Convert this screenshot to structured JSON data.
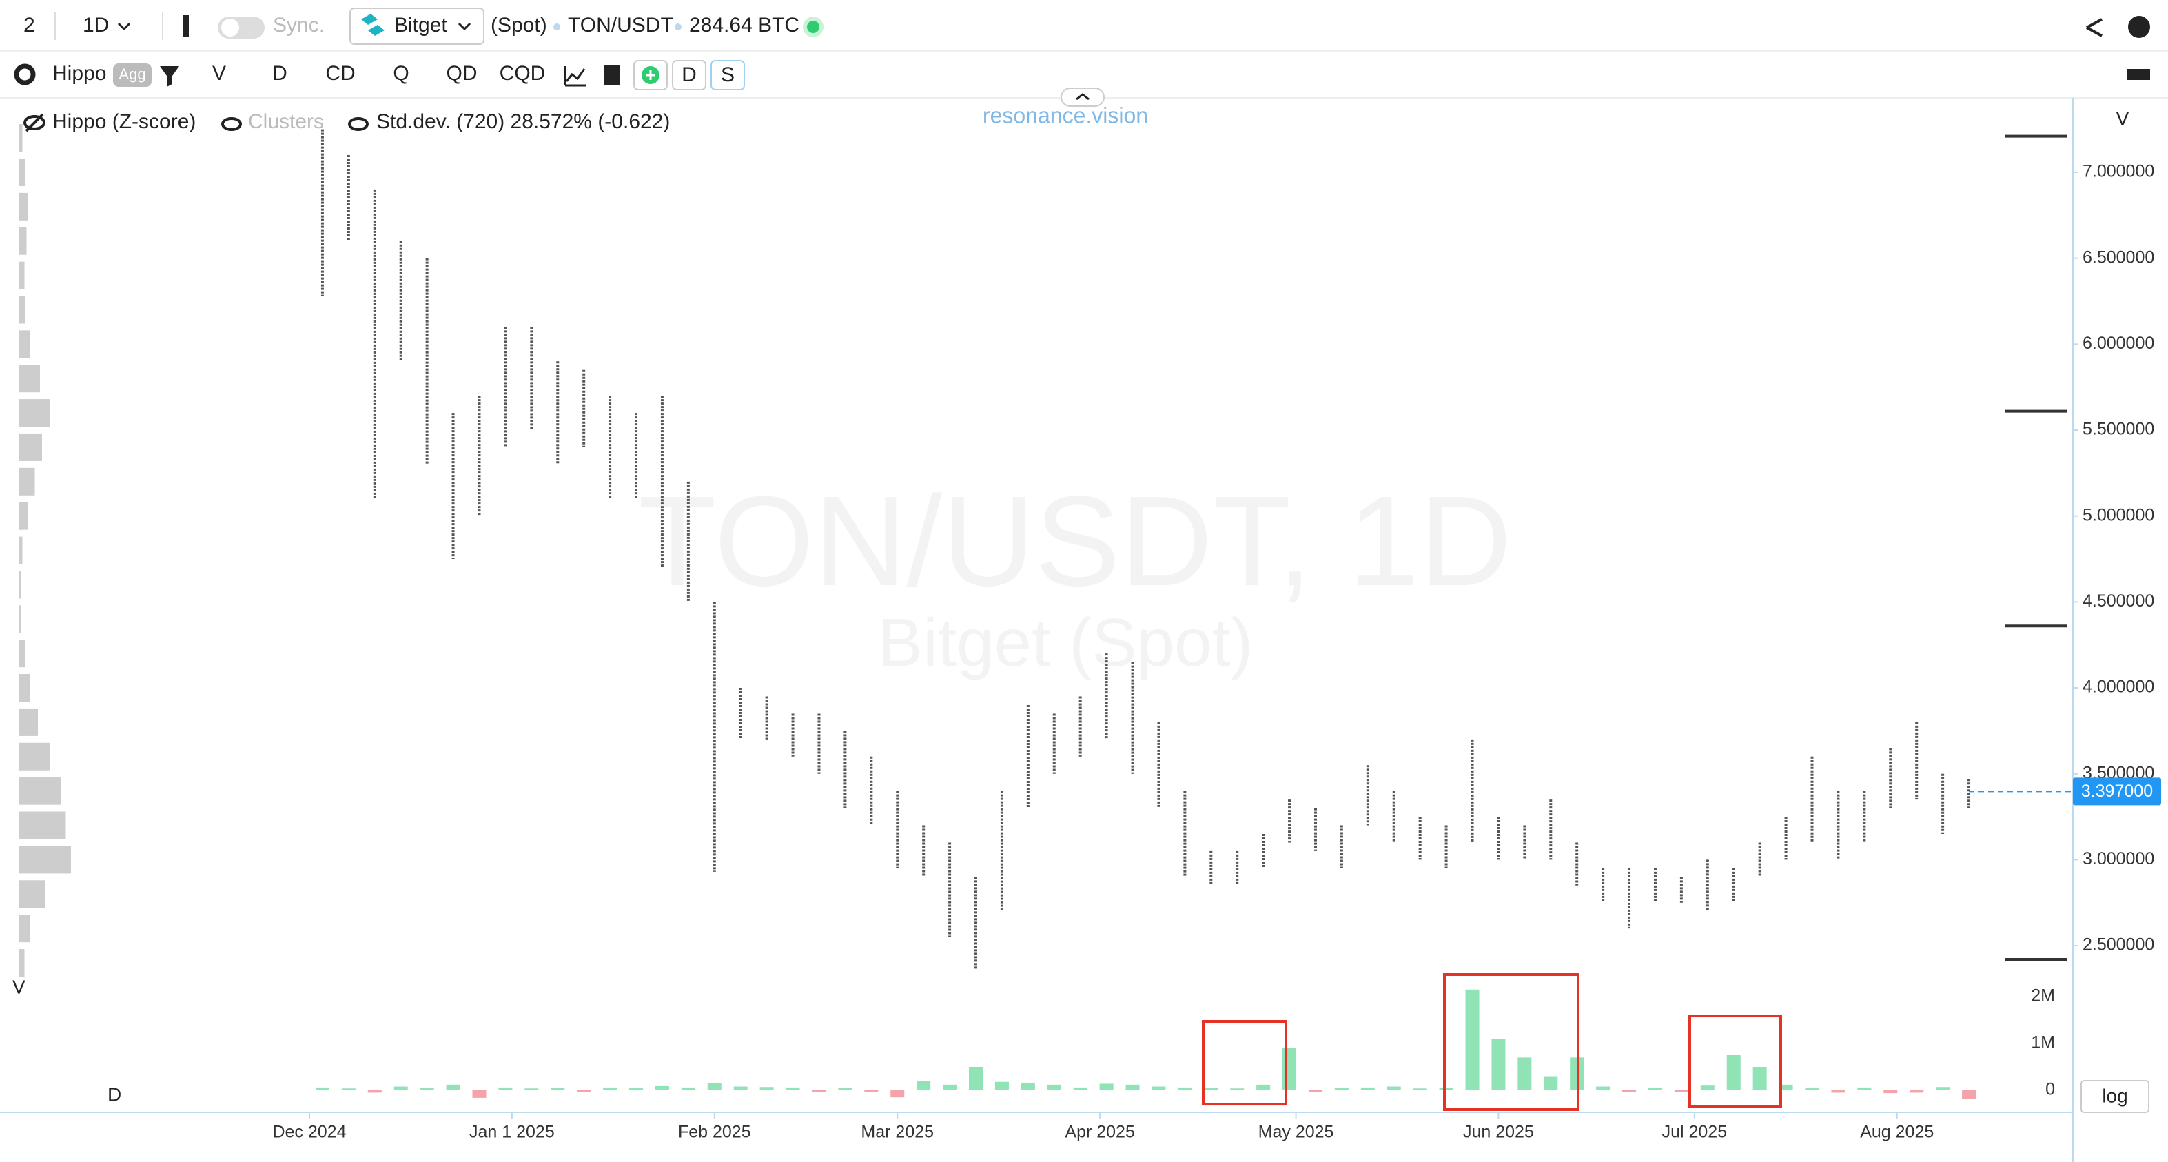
{
  "toolbar": {
    "layout": "2",
    "interval": "1D",
    "sync": "Sync.",
    "exchange": "Bitget",
    "market": "(Spot)",
    "symbol": "TON/USDT",
    "volume": "284.64 BTC"
  },
  "indicators": {
    "name": "Hippo",
    "agg": "Agg",
    "buttons": [
      "V",
      "D",
      "CD",
      "Q",
      "QD",
      "CQD"
    ],
    "toggles": [
      "D",
      "S"
    ]
  },
  "legend": {
    "hippo": "Hippo (Z-score)",
    "clusters": "Clusters",
    "stddev": "Std.dev. (720) 28.572% (-0.622)"
  },
  "brand": "resonance.vision",
  "scale_button": "log",
  "chart_data": [
    {
      "type": "candlestick",
      "title": "TON/USDT, 1D",
      "subtitle": "Bitget (Spot)",
      "y_axis_label": "V",
      "color": "#555555",
      "high": [
        7.25,
        7.1,
        6.9,
        6.6,
        6.5,
        5.6,
        5.7,
        6.1,
        6.1,
        5.9,
        5.85,
        5.7,
        5.6,
        5.7,
        5.2,
        4.5,
        4.0,
        3.95,
        3.85,
        3.85,
        3.75,
        3.6,
        3.4,
        3.2,
        3.1,
        2.9,
        3.4,
        3.9,
        3.85,
        3.95,
        4.2,
        4.15,
        3.8,
        3.4,
        3.05,
        3.05,
        3.15,
        3.35,
        3.3,
        3.2,
        3.55,
        3.4,
        3.25,
        3.2,
        3.7,
        3.25,
        3.2,
        3.35,
        3.1,
        2.95,
        2.95,
        2.95,
        2.9,
        3.0,
        2.95,
        3.1,
        3.25,
        3.6,
        3.4,
        3.4,
        3.65,
        3.8,
        3.5,
        3.47
      ],
      "low": [
        6.28,
        6.6,
        5.1,
        5.9,
        5.3,
        4.75,
        5.0,
        5.4,
        5.5,
        5.3,
        5.4,
        5.1,
        5.1,
        4.7,
        4.5,
        2.93,
        3.7,
        3.7,
        3.6,
        3.5,
        3.3,
        3.2,
        2.95,
        2.9,
        2.55,
        2.36,
        2.7,
        3.3,
        3.5,
        3.6,
        3.7,
        3.5,
        3.3,
        2.9,
        2.85,
        2.85,
        2.95,
        3.1,
        3.05,
        2.95,
        3.2,
        3.1,
        3.0,
        2.95,
        3.1,
        3.0,
        3.0,
        3.0,
        2.85,
        2.75,
        2.6,
        2.75,
        2.75,
        2.7,
        2.75,
        2.9,
        3.0,
        3.1,
        3.0,
        3.1,
        3.3,
        3.35,
        3.15,
        3.3
      ],
      "xlim": [
        -12.34,
        66.77
      ],
      "xticks": [
        {
          "value": -0.5,
          "label": "Dec 2024"
        },
        {
          "value": 7.25,
          "label": "Jan 1 2025"
        },
        {
          "value": 15,
          "label": "Feb 2025"
        },
        {
          "value": 22,
          "label": "Mar 2025"
        },
        {
          "value": 29.75,
          "label": "Apr 2025"
        },
        {
          "value": 37.25,
          "label": "May 2025"
        },
        {
          "value": 45,
          "label": "Jun 2025"
        },
        {
          "value": 52.5,
          "label": "Jul 2025"
        },
        {
          "value": 60.25,
          "label": "Aug 2025"
        }
      ],
      "ylim": [
        2.388,
        7.401
      ],
      "yticks": [
        {
          "value": 2.5,
          "label": "2.500000"
        },
        {
          "value": 3,
          "label": "3.000000"
        },
        {
          "value": 3.5,
          "label": "3.500000"
        },
        {
          "value": 4,
          "label": "4.000000"
        },
        {
          "value": 4.5,
          "label": "4.500000"
        },
        {
          "value": 5,
          "label": "5.000000"
        },
        {
          "value": 5.5,
          "label": "5.500000"
        },
        {
          "value": 6,
          "label": "6.000000"
        },
        {
          "value": 6.5,
          "label": "6.500000"
        },
        {
          "value": 7,
          "label": "7.000000"
        }
      ],
      "levels": [
        7.21,
        5.61,
        4.36,
        2.42
      ],
      "last_price": {
        "value": 3.397,
        "label": "3.397000",
        "color": "#2196f3"
      }
    },
    {
      "type": "bar",
      "label": "D",
      "positive_color": "#8fe3b4",
      "negative_color": "#f5a3aa",
      "values": [
        60000,
        40000,
        -50000,
        80000,
        50000,
        120000,
        -160000,
        60000,
        40000,
        50000,
        -40000,
        60000,
        50000,
        90000,
        60000,
        160000,
        80000,
        70000,
        60000,
        -30000,
        50000,
        -40000,
        -150000,
        200000,
        120000,
        500000,
        180000,
        150000,
        120000,
        60000,
        140000,
        120000,
        80000,
        60000,
        50000,
        40000,
        120000,
        900000,
        -40000,
        50000,
        60000,
        80000,
        40000,
        50000,
        2150000,
        1100000,
        700000,
        300000,
        700000,
        80000,
        -40000,
        50000,
        -40000,
        100000,
        750000,
        500000,
        120000,
        60000,
        -50000,
        60000,
        -60000,
        -50000,
        70000,
        -180000
      ],
      "ylim": [
        -353000,
        2470000
      ],
      "yticks": [
        {
          "value": 0,
          "label": "0"
        },
        {
          "value": 1000000,
          "label": "1M"
        },
        {
          "value": 2000000,
          "label": "2M"
        }
      ]
    },
    {
      "type": "profile",
      "label": "V",
      "color": "#c8c8c8",
      "prices": [
        2.4,
        2.6,
        2.8,
        3.0,
        3.2,
        3.4,
        3.6,
        3.8,
        4.0,
        4.2,
        4.4,
        4.6,
        4.8,
        5.0,
        5.2,
        5.4,
        5.6,
        5.8,
        6.0,
        6.2,
        6.4,
        6.6,
        6.8,
        7.0,
        7.2
      ],
      "values": [
        5,
        10,
        25,
        50,
        45,
        40,
        30,
        18,
        10,
        6,
        2,
        2,
        3,
        8,
        15,
        22,
        30,
        20,
        10,
        6,
        5,
        7,
        8,
        6,
        3
      ],
      "xlim": [
        0,
        100
      ]
    }
  ]
}
